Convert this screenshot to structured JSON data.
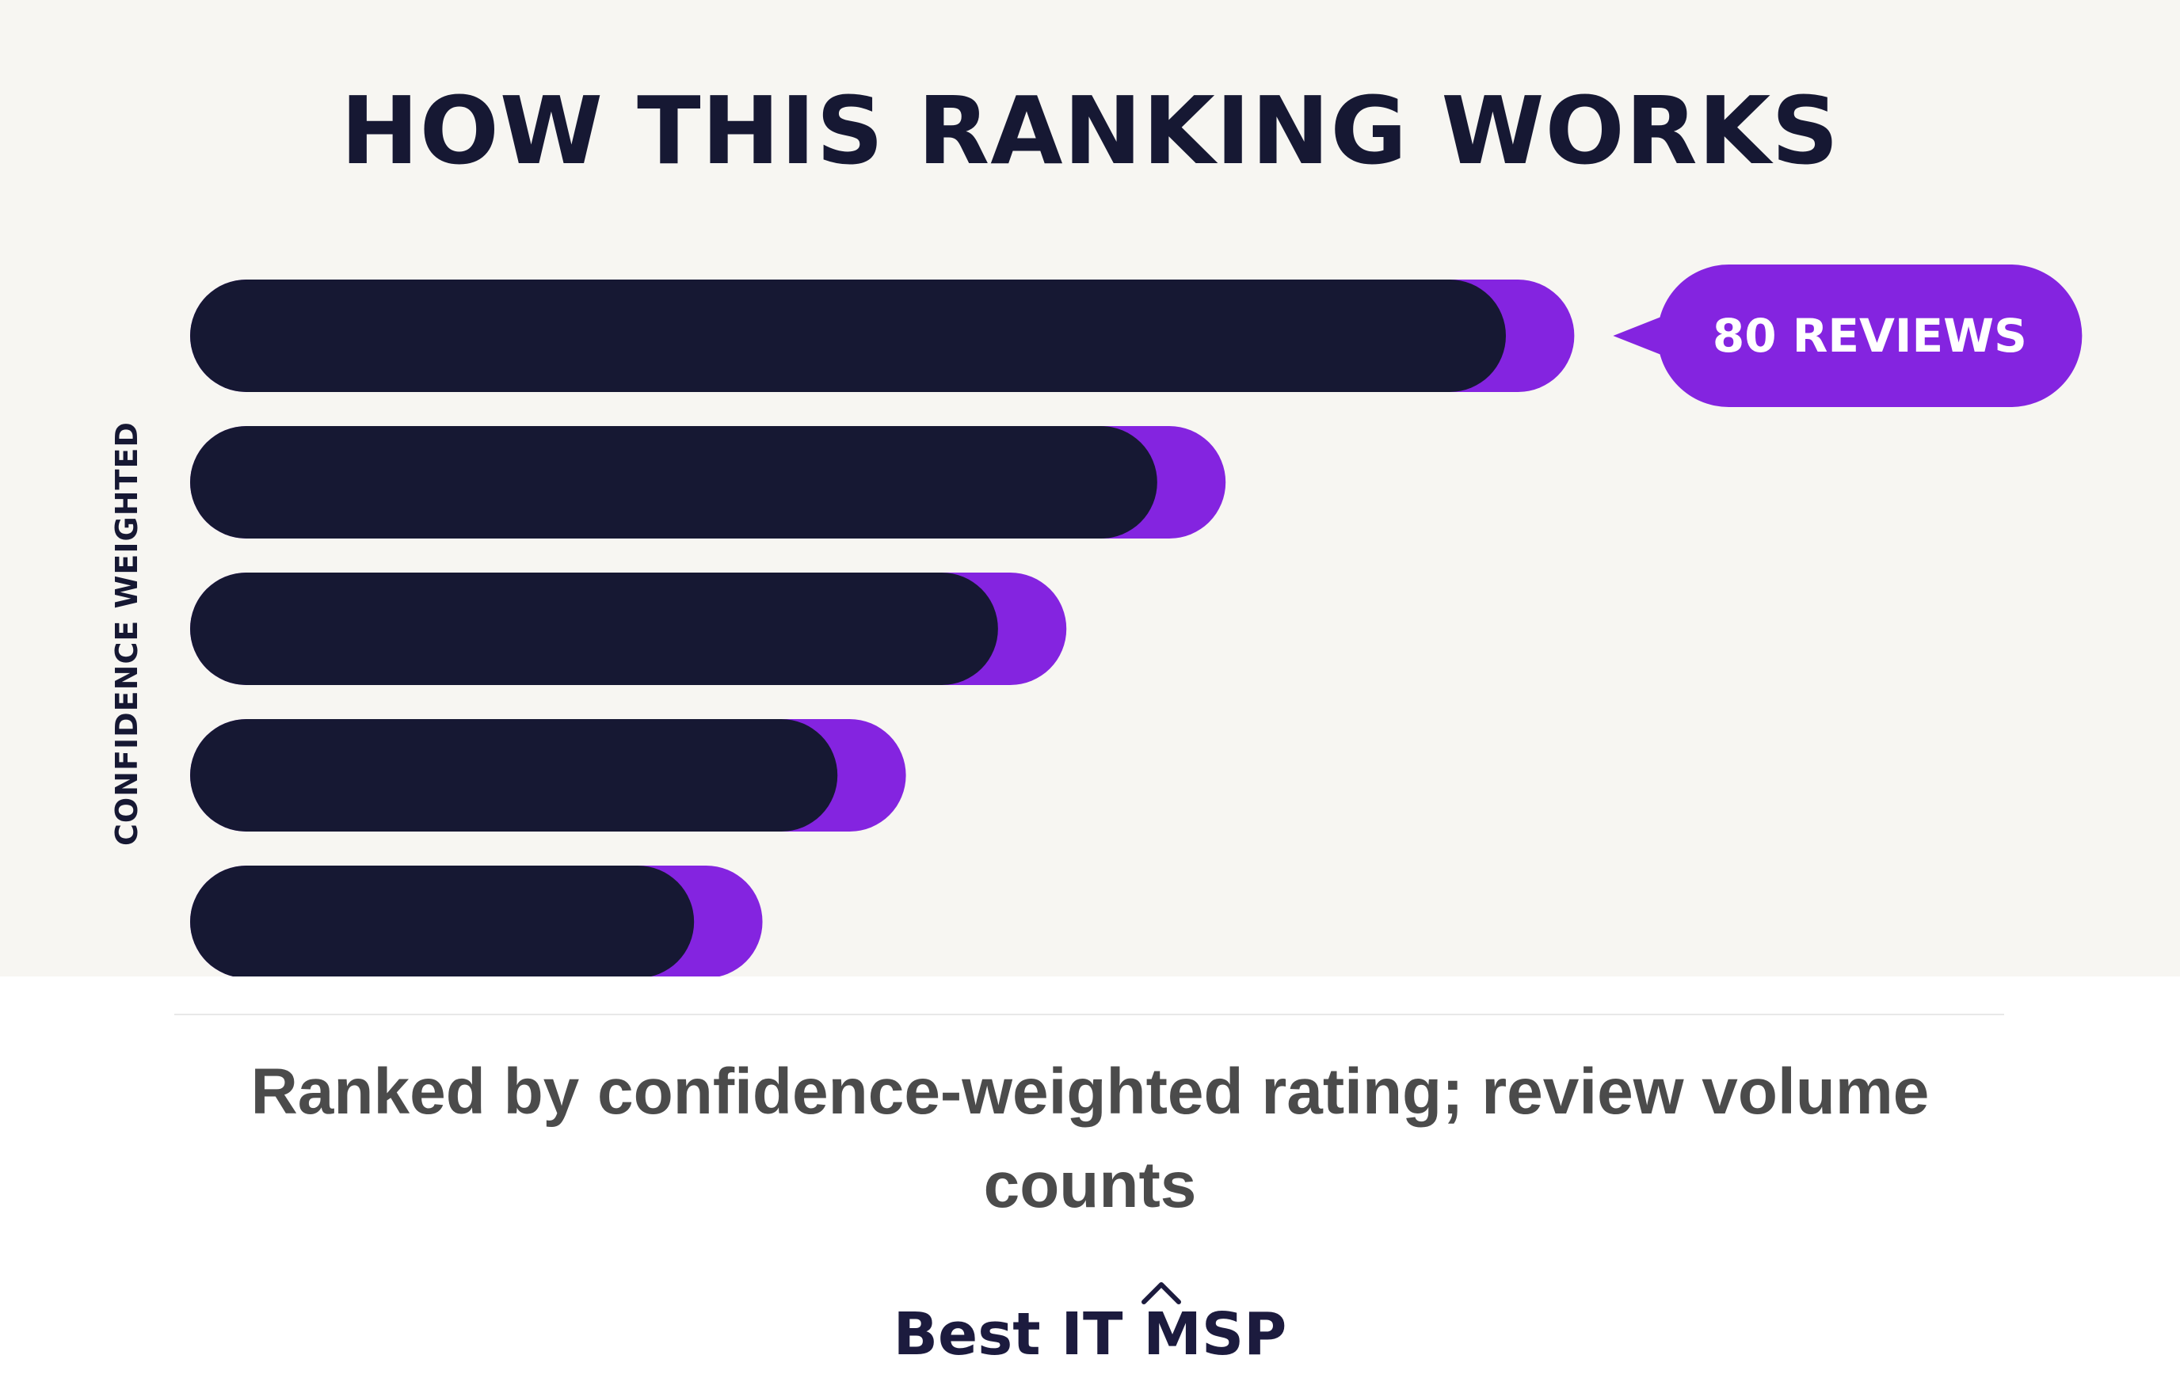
{
  "title": "HOW THIS RANKING WORKS",
  "subtitle": "Ranked by confidence-weighted rating; review volume counts",
  "brand": "Best IT MSP",
  "colors": {
    "background": "#f7f6f2",
    "bar": "#161833",
    "accent": "#8424e0",
    "title": "#161833",
    "subtitle": "#4b4b4b"
  },
  "chart_data": {
    "type": "bar",
    "orientation": "horizontal",
    "title": "HOW THIS RANKING WORKS",
    "ylabel": "CONFIDENCE WEIGHTED",
    "xlabel": "",
    "grid": false,
    "legend": "none",
    "categories": [
      "",
      "",
      "",
      "",
      ""
    ],
    "series": [
      {
        "values": [
          100,
          73.5,
          61.4,
          49.2,
          38.3
        ]
      },
      {
        "values": [
          5.2,
          5.2,
          5.2,
          5.2,
          5.2
        ]
      }
    ],
    "annotations": [
      {
        "bar_index": 0,
        "text": "80 REVIEWS"
      }
    ]
  }
}
